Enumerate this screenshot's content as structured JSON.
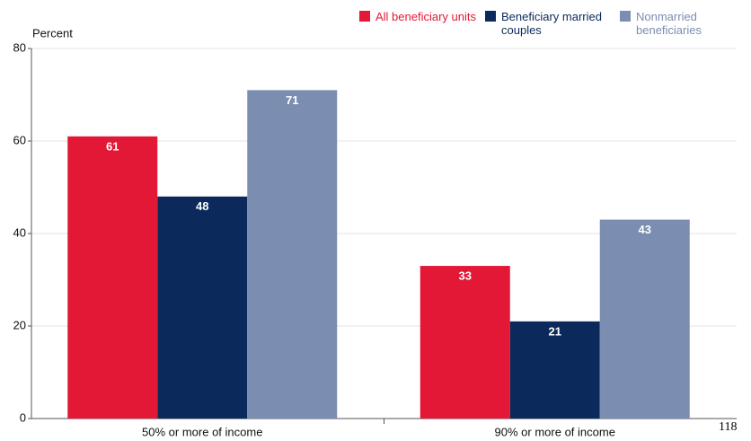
{
  "chart_data": {
    "type": "grouped-bar",
    "y_label": "Percent",
    "categories": [
      "50% or more of income",
      "90% or more of income"
    ],
    "series": [
      {
        "name": "All beneficiary units",
        "color": "#e31837",
        "values": [
          61,
          33
        ]
      },
      {
        "name": "Beneficiary married couples",
        "color": "#0b2a5b",
        "values": [
          48,
          21
        ]
      },
      {
        "name": "Nonmarried beneficiaries",
        "color": "#7b8db0",
        "values": [
          71,
          43
        ]
      }
    ],
    "ylim": [
      0,
      80
    ],
    "yticks": [
      0,
      20,
      40,
      60,
      80
    ],
    "grid": true,
    "legend": "top-right"
  },
  "page_number": "118"
}
